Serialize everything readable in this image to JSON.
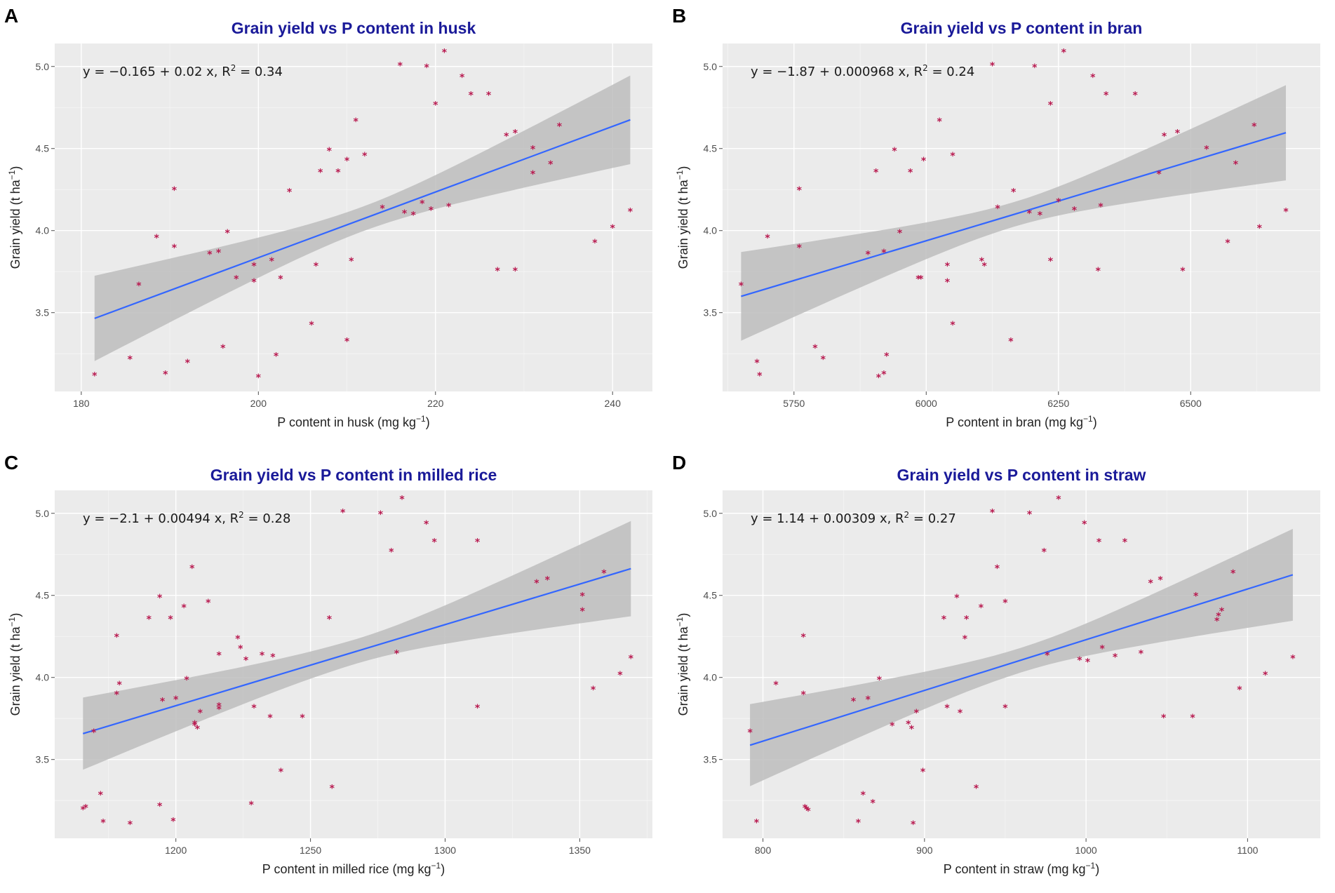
{
  "chart_data": [
    {
      "type": "scatter",
      "panel": "A",
      "title": "Grain yield vs P content in husk",
      "xlabel": "P content in husk (mg kg",
      "xlabel_sup": "−1",
      "xlabel_end": ")",
      "ylabel": "Grain yield (t ha",
      "ylabel_sup": "−1",
      "ylabel_end": ")",
      "equation": "y = −0.165 + 0.02 x, R",
      "equation_sup": "2",
      "equation_end": " = 0.34",
      "xlim": [
        177,
        244.5
      ],
      "ylim": [
        3.02,
        5.14
      ],
      "xticks": [
        180,
        200,
        220,
        240
      ],
      "xtick_labels": [
        "180",
        "200",
        "220",
        "240"
      ],
      "yticks": [
        3.5,
        4.0,
        4.5,
        5.0
      ],
      "ytick_labels": [
        "3.5",
        "4.0",
        "4.5",
        "5.0"
      ],
      "fit": {
        "intercept": -0.165,
        "slope": 0.02,
        "x_range": [
          181.5,
          242
        ],
        "band_start": 0.26,
        "band_end": 0.27
      },
      "points": [
        [
          181.5,
          3.12
        ],
        [
          185.5,
          3.22
        ],
        [
          186.5,
          3.67
        ],
        [
          188.5,
          3.96
        ],
        [
          189.5,
          3.13
        ],
        [
          190.5,
          4.25
        ],
        [
          190.5,
          3.9
        ],
        [
          192,
          3.2
        ],
        [
          194.5,
          3.86
        ],
        [
          195.5,
          3.87
        ],
        [
          196,
          3.29
        ],
        [
          196.5,
          3.99
        ],
        [
          197.5,
          3.71
        ],
        [
          199.5,
          3.79
        ],
        [
          199.5,
          3.69
        ],
        [
          200,
          3.11
        ],
        [
          201.5,
          3.82
        ],
        [
          202,
          3.24
        ],
        [
          202.5,
          3.71
        ],
        [
          203.5,
          4.24
        ],
        [
          206,
          3.43
        ],
        [
          206.5,
          3.79
        ],
        [
          207,
          4.36
        ],
        [
          208,
          4.49
        ],
        [
          209,
          4.36
        ],
        [
          210,
          4.43
        ],
        [
          210,
          3.33
        ],
        [
          210.5,
          3.82
        ],
        [
          211,
          4.67
        ],
        [
          212,
          4.46
        ],
        [
          214,
          4.14
        ],
        [
          216,
          5.01
        ],
        [
          216.5,
          4.11
        ],
        [
          217.5,
          4.1
        ],
        [
          218.5,
          4.17
        ],
        [
          219,
          5.0
        ],
        [
          219.5,
          4.13
        ],
        [
          220,
          4.77
        ],
        [
          221,
          5.09
        ],
        [
          221.5,
          4.15
        ],
        [
          223,
          4.94
        ],
        [
          224,
          4.83
        ],
        [
          226,
          4.83
        ],
        [
          227,
          3.76
        ],
        [
          228,
          4.58
        ],
        [
          229,
          4.6
        ],
        [
          229,
          3.76
        ],
        [
          231,
          4.5
        ],
        [
          231,
          4.35
        ],
        [
          233,
          4.41
        ],
        [
          234,
          4.64
        ],
        [
          238,
          3.93
        ],
        [
          240,
          4.02
        ],
        [
          242,
          4.12
        ]
      ]
    },
    {
      "type": "scatter",
      "panel": "B",
      "title": "Grain yield vs P content in bran",
      "xlabel": "P content in bran (mg kg",
      "xlabel_sup": "−1",
      "xlabel_end": ")",
      "ylabel": "Grain yield (t ha",
      "ylabel_sup": "−1",
      "ylabel_end": ")",
      "equation": "y = −1.87 + 0.000968 x, R",
      "equation_sup": "2",
      "equation_end": " = 0.24",
      "xlim": [
        5615,
        6745
      ],
      "ylim": [
        3.02,
        5.14
      ],
      "xticks": [
        5750,
        6000,
        6250,
        6500
      ],
      "xtick_labels": [
        "5750",
        "6000",
        "6250",
        "6500"
      ],
      "yticks": [
        3.5,
        4.0,
        4.5,
        5.0
      ],
      "ytick_labels": [
        "3.5",
        "4.0",
        "4.5",
        "5.0"
      ],
      "fit": {
        "intercept": -1.87,
        "slope": 0.000968,
        "x_range": [
          5650,
          6680
        ],
        "band_start": 0.27,
        "band_end": 0.29
      },
      "points": [
        [
          5650,
          3.67
        ],
        [
          5680,
          3.2
        ],
        [
          5685,
          3.12
        ],
        [
          5700,
          3.96
        ],
        [
          5760,
          4.25
        ],
        [
          5760,
          3.9
        ],
        [
          5790,
          3.29
        ],
        [
          5805,
          3.22
        ],
        [
          5890,
          3.86
        ],
        [
          5905,
          4.36
        ],
        [
          5910,
          3.11
        ],
        [
          5920,
          3.87
        ],
        [
          5920,
          3.13
        ],
        [
          5925,
          3.24
        ],
        [
          5940,
          4.49
        ],
        [
          5950,
          3.99
        ],
        [
          5970,
          4.36
        ],
        [
          5985,
          3.71
        ],
        [
          5990,
          3.71
        ],
        [
          5995,
          4.43
        ],
        [
          6025,
          4.67
        ],
        [
          6040,
          3.79
        ],
        [
          6040,
          3.69
        ],
        [
          6050,
          4.46
        ],
        [
          6050,
          3.43
        ],
        [
          6105,
          3.82
        ],
        [
          6110,
          3.79
        ],
        [
          6125,
          5.01
        ],
        [
          6135,
          4.14
        ],
        [
          6160,
          3.33
        ],
        [
          6165,
          4.24
        ],
        [
          6195,
          4.11
        ],
        [
          6205,
          5.0
        ],
        [
          6215,
          4.1
        ],
        [
          6235,
          4.77
        ],
        [
          6235,
          3.82
        ],
        [
          6250,
          4.18
        ],
        [
          6260,
          5.09
        ],
        [
          6280,
          4.13
        ],
        [
          6315,
          4.94
        ],
        [
          6325,
          3.76
        ],
        [
          6330,
          4.15
        ],
        [
          6340,
          4.83
        ],
        [
          6395,
          4.83
        ],
        [
          6440,
          4.35
        ],
        [
          6450,
          4.58
        ],
        [
          6475,
          4.6
        ],
        [
          6485,
          3.76
        ],
        [
          6530,
          4.5
        ],
        [
          6570,
          3.93
        ],
        [
          6585,
          4.41
        ],
        [
          6620,
          4.64
        ],
        [
          6630,
          4.02
        ],
        [
          6680,
          4.12
        ]
      ]
    },
    {
      "type": "scatter",
      "panel": "C",
      "title": "Grain yield vs P content in milled rice",
      "xlabel": "P content in milled rice (mg kg",
      "xlabel_sup": "−1",
      "xlabel_end": ")",
      "ylabel": "Grain yield (t ha",
      "ylabel_sup": "−1",
      "ylabel_end": ")",
      "equation": "y = −2.1 + 0.00494 x, R",
      "equation_sup": "2",
      "equation_end": " = 0.28",
      "xlim": [
        1155,
        1377
      ],
      "ylim": [
        3.02,
        5.14
      ],
      "xticks": [
        1200,
        1250,
        1300,
        1350
      ],
      "xtick_labels": [
        "1200",
        "1250",
        "1300",
        "1350"
      ],
      "yticks": [
        3.5,
        4.0,
        4.5,
        5.0
      ],
      "ytick_labels": [
        "3.5",
        "4.0",
        "4.5",
        "5.0"
      ],
      "fit": {
        "intercept": -2.1,
        "slope": 0.00494,
        "x_range": [
          1165.5,
          1369
        ],
        "band_start": 0.22,
        "band_end": 0.29
      },
      "points": [
        [
          1165.5,
          3.2
        ],
        [
          1166.5,
          3.21
        ],
        [
          1169.5,
          3.67
        ],
        [
          1172,
          3.29
        ],
        [
          1173,
          3.12
        ],
        [
          1178,
          4.25
        ],
        [
          1178,
          3.9
        ],
        [
          1179,
          3.96
        ],
        [
          1183,
          3.11
        ],
        [
          1190,
          4.36
        ],
        [
          1194,
          4.49
        ],
        [
          1194,
          3.22
        ],
        [
          1195,
          3.86
        ],
        [
          1198,
          4.36
        ],
        [
          1199,
          3.13
        ],
        [
          1200,
          3.87
        ],
        [
          1203,
          4.43
        ],
        [
          1204,
          3.99
        ],
        [
          1206,
          4.67
        ],
        [
          1207,
          3.71
        ],
        [
          1207,
          3.72
        ],
        [
          1208,
          3.69
        ],
        [
          1209,
          3.79
        ],
        [
          1212,
          4.46
        ],
        [
          1216,
          3.83
        ],
        [
          1216,
          3.81
        ],
        [
          1216,
          4.14
        ],
        [
          1223,
          4.24
        ],
        [
          1224,
          4.18
        ],
        [
          1226,
          4.11
        ],
        [
          1228,
          3.23
        ],
        [
          1229,
          3.82
        ],
        [
          1232,
          4.14
        ],
        [
          1235,
          3.76
        ],
        [
          1236,
          4.13
        ],
        [
          1239,
          3.43
        ],
        [
          1247,
          3.76
        ],
        [
          1257,
          4.36
        ],
        [
          1258,
          3.33
        ],
        [
          1262,
          5.01
        ],
        [
          1276,
          5.0
        ],
        [
          1280,
          4.77
        ],
        [
          1282,
          4.15
        ],
        [
          1284,
          5.09
        ],
        [
          1293,
          4.94
        ],
        [
          1296,
          4.83
        ],
        [
          1312,
          4.83
        ],
        [
          1312,
          3.82
        ],
        [
          1334,
          4.58
        ],
        [
          1338,
          4.6
        ],
        [
          1351,
          4.5
        ],
        [
          1351,
          4.41
        ],
        [
          1355,
          3.93
        ],
        [
          1359,
          4.64
        ],
        [
          1365,
          4.02
        ],
        [
          1369,
          4.12
        ]
      ]
    },
    {
      "type": "scatter",
      "panel": "D",
      "title": "Grain yield vs P content in straw",
      "xlabel": "P content in straw (mg kg",
      "xlabel_sup": "−1",
      "xlabel_end": ")",
      "ylabel": "Grain yield (t ha",
      "ylabel_sup": "−1",
      "ylabel_end": ")",
      "equation": "y = 1.14 + 0.00309 x, R",
      "equation_sup": "2",
      "equation_end": " = 0.27",
      "xlim": [
        775,
        1145
      ],
      "ylim": [
        3.02,
        5.14
      ],
      "xticks": [
        800,
        900,
        1000,
        1100
      ],
      "xtick_labels": [
        "800",
        "900",
        "1000",
        "1100"
      ],
      "yticks": [
        3.5,
        4.0,
        4.5,
        5.0
      ],
      "ytick_labels": [
        "3.5",
        "4.0",
        "4.5",
        "5.0"
      ],
      "fit": {
        "intercept": 1.14,
        "slope": 0.00309,
        "x_range": [
          792,
          1128
        ],
        "band_start": 0.25,
        "band_end": 0.28
      },
      "points": [
        [
          792,
          3.67
        ],
        [
          796,
          3.12
        ],
        [
          808,
          3.96
        ],
        [
          825,
          4.25
        ],
        [
          825,
          3.9
        ],
        [
          826,
          3.21
        ],
        [
          827,
          3.2
        ],
        [
          828,
          3.19
        ],
        [
          856,
          3.86
        ],
        [
          859,
          3.12
        ],
        [
          862,
          3.29
        ],
        [
          865,
          3.87
        ],
        [
          868,
          3.24
        ],
        [
          872,
          3.99
        ],
        [
          880,
          3.71
        ],
        [
          890,
          3.72
        ],
        [
          892,
          3.69
        ],
        [
          893,
          3.11
        ],
        [
          895,
          3.79
        ],
        [
          899,
          3.43
        ],
        [
          912,
          4.36
        ],
        [
          914,
          3.82
        ],
        [
          920,
          4.49
        ],
        [
          922,
          3.79
        ],
        [
          925,
          4.24
        ],
        [
          926,
          4.36
        ],
        [
          932,
          3.33
        ],
        [
          935,
          4.43
        ],
        [
          942,
          5.01
        ],
        [
          945,
          4.67
        ],
        [
          950,
          4.46
        ],
        [
          950,
          3.82
        ],
        [
          965,
          5.0
        ],
        [
          974,
          4.77
        ],
        [
          976,
          4.14
        ],
        [
          983,
          5.09
        ],
        [
          996,
          4.11
        ],
        [
          999,
          4.94
        ],
        [
          1001,
          4.1
        ],
        [
          1008,
          4.83
        ],
        [
          1010,
          4.18
        ],
        [
          1018,
          4.13
        ],
        [
          1024,
          4.83
        ],
        [
          1034,
          4.15
        ],
        [
          1040,
          4.58
        ],
        [
          1046,
          4.6
        ],
        [
          1048,
          3.76
        ],
        [
          1066,
          3.76
        ],
        [
          1068,
          4.5
        ],
        [
          1081,
          4.35
        ],
        [
          1082,
          4.38
        ],
        [
          1084,
          4.41
        ],
        [
          1091,
          4.64
        ],
        [
          1095,
          3.93
        ],
        [
          1111,
          4.02
        ],
        [
          1128,
          4.12
        ]
      ]
    }
  ]
}
